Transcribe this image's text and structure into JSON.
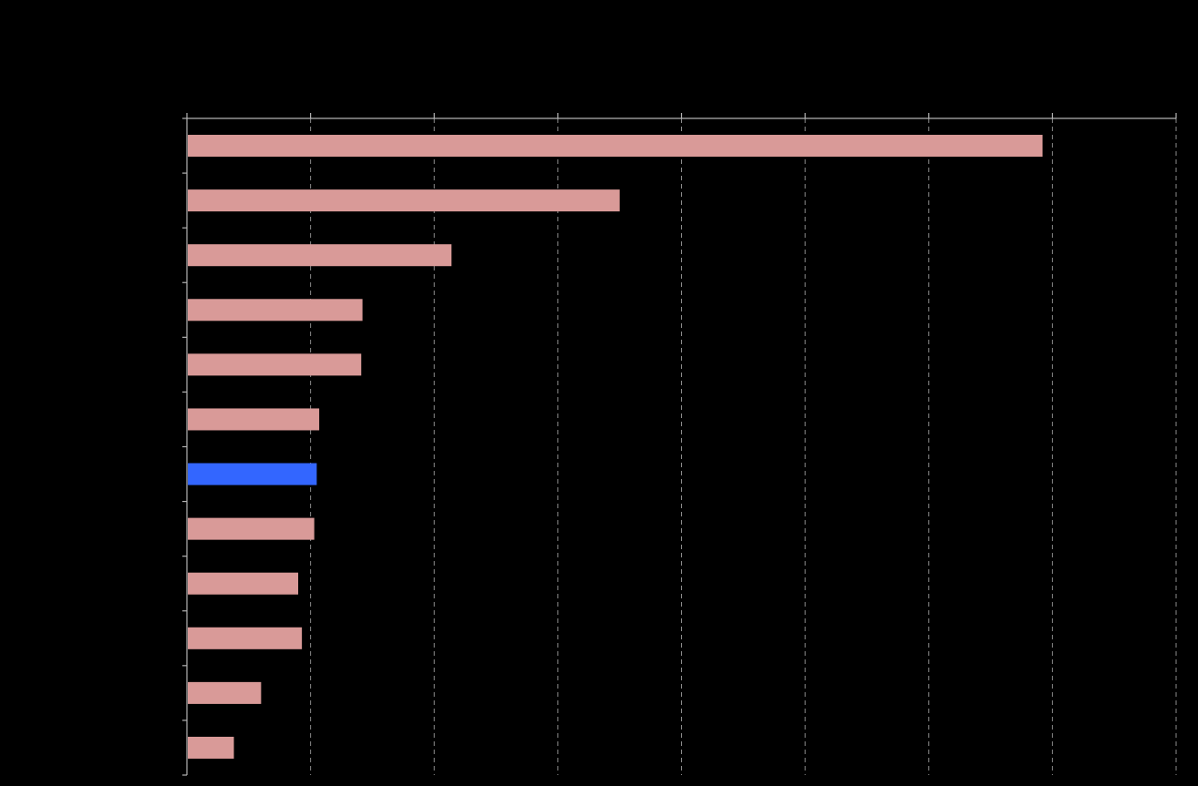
{
  "colors": {
    "background": "#000000",
    "bar_default": "#d99a98",
    "bar_highlight": "#3366ff",
    "grid": "#8c8c8c",
    "axis": "#b4b4b4"
  },
  "chart_data": {
    "type": "bar",
    "orientation": "horizontal",
    "title": "",
    "xlabel": "",
    "ylabel": "",
    "xlim": [
      0,
      8
    ],
    "grid": "vertical dashed",
    "tick_labels_visible": false,
    "highlight_index": 6,
    "values": [
      6.92,
      3.5,
      2.14,
      1.42,
      1.41,
      1.07,
      1.05,
      1.03,
      0.9,
      0.93,
      0.6,
      0.38
    ]
  }
}
